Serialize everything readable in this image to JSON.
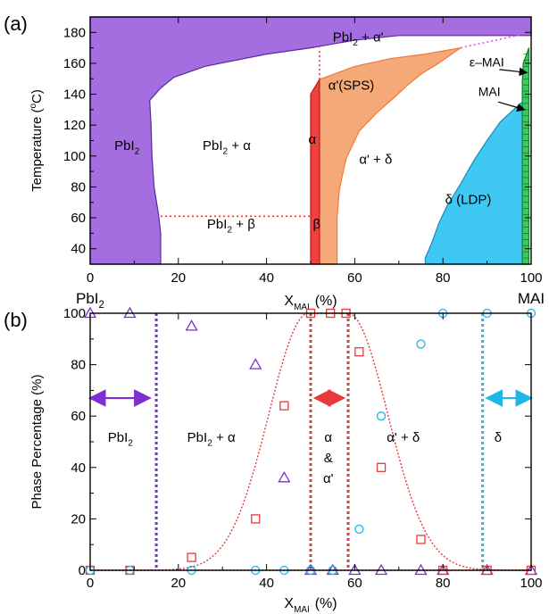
{
  "chart_data": [
    {
      "panel_label": "(a)",
      "type": "area",
      "xlabel_main": "X",
      "xlabel_sub": "MAI",
      "xlabel_unit": "(%)",
      "ylabel": "Temperature (°C)",
      "ylabel_parts": {
        "pre": "Temperature (",
        "sup": "o",
        "post": "C)"
      },
      "xlim": [
        0,
        100
      ],
      "ylim": [
        30,
        190
      ],
      "xticks": [
        0,
        20,
        40,
        60,
        80,
        100
      ],
      "yticks": [
        40,
        60,
        80,
        100,
        120,
        140,
        160,
        180
      ],
      "x_end_labels": {
        "left": "PbI2",
        "right": "MAI"
      },
      "colors": {
        "pbi2": "#a56ee0",
        "alpha_sps": "#f5a878",
        "alpha_edge": "#f07a3a",
        "alpha": "#f04040",
        "delta": "#3fc8f2",
        "mai": "#3cc85a",
        "dotted": "#e8383a",
        "dotted_right": "#e050e0"
      },
      "regions": [
        {
          "name": "PbI2",
          "boundary": [
            [
              0,
              30
            ],
            [
              16,
              30
            ],
            [
              16,
              50
            ],
            [
              15.5,
              62
            ],
            [
              14.5,
              80
            ],
            [
              14,
              100
            ],
            [
              13.8,
              120
            ],
            [
              13.5,
              136
            ],
            [
              16,
              144
            ],
            [
              19,
              151
            ],
            [
              26,
              158
            ],
            [
              40,
              166
            ],
            [
              50,
              170
            ],
            [
              60,
              175
            ],
            [
              70,
              178
            ],
            [
              100,
              178
            ],
            [
              100,
              190
            ],
            [
              0,
              190
            ]
          ]
        },
        {
          "name": "α'(SPS)",
          "boundary": [
            [
              52,
              30
            ],
            [
              56,
              30
            ],
            [
              56,
              60
            ],
            [
              56.5,
              78
            ],
            [
              58,
              98
            ],
            [
              61,
              116
            ],
            [
              65,
              128
            ],
            [
              69,
              138
            ],
            [
              72,
              146
            ],
            [
              75,
              153
            ],
            [
              79,
              160
            ],
            [
              84,
              170
            ],
            [
              76,
              166
            ],
            [
              68,
              163
            ],
            [
              60,
              158
            ],
            [
              52,
              149.5
            ]
          ]
        },
        {
          "name": "α",
          "boundary": [
            [
              50,
              30
            ],
            [
              52,
              30
            ],
            [
              52,
              149.5
            ],
            [
              50,
              140
            ]
          ]
        },
        {
          "name": "δ (LDP)",
          "boundary": [
            [
              76,
              30
            ],
            [
              98,
              30
            ],
            [
              98,
              135
            ],
            [
              96,
              130
            ],
            [
              93,
              122
            ],
            [
              90,
              110
            ],
            [
              87,
              97
            ],
            [
              84,
              82
            ],
            [
              81,
              68
            ],
            [
              79,
              56
            ],
            [
              77.5,
              44
            ],
            [
              76,
              34
            ]
          ]
        },
        {
          "name": "MAI",
          "boundary": [
            [
              98,
              30
            ],
            [
              99.5,
              30
            ],
            [
              99.5,
              170
            ],
            [
              98.2,
              160
            ],
            [
              98,
              148
            ]
          ]
        }
      ],
      "dotted_lines": [
        {
          "points": [
            [
              16,
              61
            ],
            [
              52,
              61
            ]
          ]
        },
        {
          "points": [
            [
              52,
              149.5
            ],
            [
              52,
              170
            ]
          ]
        },
        {
          "points": [
            [
              84,
              170
            ],
            [
              100,
              180
            ]
          ]
        }
      ],
      "labels": [
        {
          "text_main": "PbI",
          "sub": "2",
          "post": "",
          "x": 5.5,
          "y": 104
        },
        {
          "text_main": "PbI",
          "sub": "2",
          "post": " + α",
          "x": 25.5,
          "y": 104
        },
        {
          "text_main": "PbI",
          "sub": "2",
          "post": " + β",
          "x": 26.5,
          "y": 53
        },
        {
          "text_main": "PbI",
          "sub": "2",
          "post": " + α'",
          "x": 55,
          "y": 174
        },
        {
          "text_main": "α'(SPS)",
          "sub": "",
          "post": "",
          "x": 54,
          "y": 143
        },
        {
          "text_main": "α",
          "sub": "",
          "post": "",
          "x": 49.5,
          "y": 108
        },
        {
          "text_main": "β",
          "sub": "",
          "post": "",
          "x": 50.5,
          "y": 53
        },
        {
          "text_main": "α' + δ",
          "sub": "",
          "post": "",
          "x": 61,
          "y": 95
        },
        {
          "text_main": "δ  (LDP)",
          "sub": "",
          "post": "",
          "x": 80.5,
          "y": 69
        },
        {
          "text_main": "ε–MAI",
          "sub": "",
          "post": "",
          "x": 86,
          "y": 158
        },
        {
          "text_main": "MAI",
          "sub": "",
          "post": "",
          "x": 88,
          "y": 139
        }
      ],
      "arrows": [
        {
          "from": [
            92.8,
            156
          ],
          "to": [
            99,
            154
          ]
        },
        {
          "from": [
            92.5,
            135
          ],
          "to": [
            98.5,
            130
          ]
        }
      ]
    },
    {
      "panel_label": "(b)",
      "type": "scatter",
      "xlabel_main": "X",
      "xlabel_sub": "MAI",
      "xlabel_unit": "(%)",
      "ylabel": "Phase Percentage (%)",
      "xlim": [
        0,
        100
      ],
      "ylim": [
        0,
        100
      ],
      "xticks": [
        0,
        20,
        40,
        60,
        80,
        100
      ],
      "yticks": [
        0,
        20,
        40,
        60,
        80,
        100
      ],
      "colors": {
        "triangle": "#7d2fd0",
        "square": "#e8383a",
        "circle": "#1eb8e8",
        "arrow_pbi2": "#7d2fd0",
        "arrow_alpha": "#e8383a",
        "arrow_delta": "#1eb8e8"
      },
      "series": [
        {
          "marker": "triangle",
          "x": [
            0,
            9,
            23,
            37.5,
            44,
            50,
            55,
            60,
            66,
            75,
            80,
            90,
            100
          ],
          "y": [
            100,
            100,
            95,
            80,
            36,
            0,
            0,
            0,
            0,
            0,
            0,
            0,
            0
          ]
        },
        {
          "marker": "square",
          "x": [
            0,
            9,
            23,
            37.5,
            44,
            50,
            54.5,
            58,
            61,
            66,
            75,
            80,
            90,
            100
          ],
          "y": [
            0,
            0,
            5,
            20,
            64,
            100,
            100,
            100,
            85,
            40,
            12,
            0,
            0,
            0
          ]
        },
        {
          "marker": "circle",
          "x": [
            0,
            9,
            23,
            37.5,
            44,
            50,
            55,
            61,
            66,
            75,
            80,
            90,
            100
          ],
          "y": [
            0,
            0,
            0,
            0,
            0,
            0,
            0,
            16,
            60,
            88,
            100,
            100,
            100
          ]
        }
      ],
      "fit_curve": {
        "center": 54,
        "plateau_half_width": 4.5,
        "sigma": 9.0
      },
      "vlines": [
        {
          "x": 15,
          "color": "#7d2fd0"
        },
        {
          "x": 50,
          "color": "#e8383a"
        },
        {
          "x": 58.5,
          "color": "#e8383a"
        },
        {
          "x": 89,
          "color": "#1eb8e8"
        }
      ],
      "region_arrows": [
        {
          "from": 0,
          "to": 13.5,
          "y": 67,
          "color": "#7d2fd0"
        },
        {
          "from": 51,
          "to": 57.5,
          "y": 67,
          "color": "#e8383a"
        },
        {
          "from": 90,
          "to": 100,
          "y": 67,
          "color": "#1eb8e8"
        }
      ],
      "labels": [
        {
          "text_main": "PbI",
          "sub": "2",
          "post": "",
          "x": 4,
          "y": 50
        },
        {
          "text_main": "PbI",
          "sub": "2",
          "post": " + α",
          "x": 22,
          "y": 50
        },
        {
          "text_main": "α",
          "sub": "",
          "post": "",
          "x": 54,
          "y": 50
        },
        {
          "text_main": "&",
          "sub": "",
          "post": "",
          "x": 54,
          "y": 42
        },
        {
          "text_main": "α'",
          "sub": "",
          "post": "",
          "x": 54,
          "y": 34
        },
        {
          "text_main": "α' + δ",
          "sub": "",
          "post": "",
          "x": 71,
          "y": 50
        },
        {
          "text_main": "δ",
          "sub": "",
          "post": "",
          "x": 92.5,
          "y": 50
        }
      ]
    }
  ]
}
